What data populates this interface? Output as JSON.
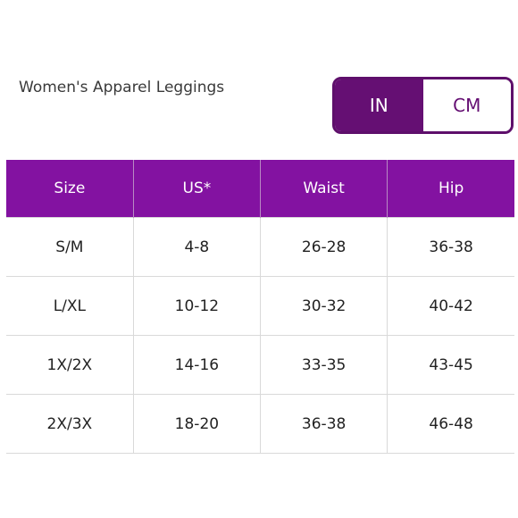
{
  "title": "Women's Apparel Leggings",
  "unit_toggle": {
    "options": [
      {
        "label": "IN",
        "active": true
      },
      {
        "label": "CM",
        "active": false
      }
    ]
  },
  "accent_colors": {
    "header": "#8312a1",
    "toggle": "#650f73"
  },
  "table": {
    "headers": [
      "Size",
      "US*",
      "Waist",
      "Hip"
    ],
    "rows": [
      [
        "S/M",
        "4-8",
        "26-28",
        "36-38"
      ],
      [
        "L/XL",
        "10-12",
        "30-32",
        "40-42"
      ],
      [
        "1X/2X",
        "14-16",
        "33-35",
        "43-45"
      ],
      [
        "2X/3X",
        "18-20",
        "36-38",
        "46-48"
      ]
    ]
  }
}
